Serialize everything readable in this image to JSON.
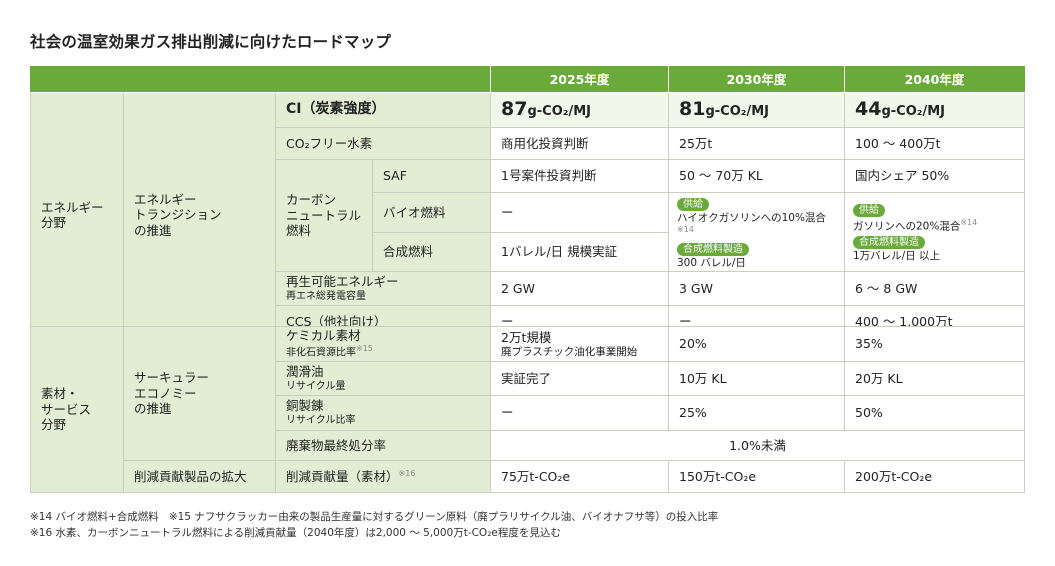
{
  "title": "社会の温室効果ガス排出削減に向けたロードマップ",
  "header": {
    "years": [
      "2025年度",
      "2030年度",
      "2040年度"
    ]
  },
  "sections": {
    "energy": {
      "label1": "エネルギー",
      "label2": "分野",
      "cat1": "エネルギー",
      "cat2": "トランジション",
      "cat3": "の推進"
    },
    "material": {
      "label1": "素材・",
      "label2": "サービス",
      "label3": "分野",
      "cat1": "サーキュラー",
      "cat2": "エコノミー",
      "cat3": "の推進",
      "cat_reduce": "削減貢献製品の拡大"
    }
  },
  "ci": {
    "label": "CI（炭素強度）",
    "unit": "g-CO₂/MJ",
    "v2025": "87",
    "v2030": "81",
    "v2040": "44"
  },
  "co2free": {
    "label": "CO₂フリー水素",
    "v2025": "商用化投資判断",
    "v2030": "25万t",
    "v2040": "100 ～ 400万t"
  },
  "carbon_neutral": {
    "label1": "カーボン",
    "label2": "ニュートラル",
    "label3": "燃料",
    "saf": {
      "label": "SAF",
      "v2025": "1号案件投資判断",
      "v2030": "50 ～ 70万 KL",
      "v2040": "国内シェア 50%"
    },
    "bio": {
      "label": "バイオ燃料",
      "v2025": "ー"
    },
    "synth": {
      "label": "合成燃料",
      "v2025": "1バレル/日 規模実証"
    },
    "merged2030": {
      "badge1": "供給",
      "text1": "ハイオクガソリンへの10%混合",
      "note1": "※14",
      "badge2": "合成燃料製造",
      "text2": "300 バレル/日"
    },
    "merged2040": {
      "badge1": "供給",
      "text1": "ガソリンへの20%混合",
      "note1": "※14",
      "badge2": "合成燃料製造",
      "text2": "1万バレル/日 以上"
    }
  },
  "renewable": {
    "label": "再生可能エネルギー",
    "sub": "再エネ総発電容量",
    "v2025": "2 GW",
    "v2030": "3 GW",
    "v2040": "6 ～ 8 GW"
  },
  "ccs": {
    "label": "CCS（他社向け）",
    "v2025": "ー",
    "v2030": "ー",
    "v2040": "400 ～ 1,000万t"
  },
  "chemical": {
    "label": "ケミカル素材",
    "sub": "非化石資源比率",
    "note": "※15",
    "v2025a": "2万t規模",
    "v2025b": "廃プラスチック油化事業開始",
    "v2030": "20%",
    "v2040": "35%"
  },
  "lubricant": {
    "label": "潤滑油",
    "sub": "リサイクル量",
    "v2025": "実証完了",
    "v2030": "10万 KL",
    "v2040": "20万 KL"
  },
  "copper": {
    "label": "銅製錬",
    "sub": "リサイクル比率",
    "v2025": "ー",
    "v2030": "25%",
    "v2040": "50%"
  },
  "waste": {
    "label": "廃棄物最終処分率",
    "value": "1.0%未満"
  },
  "reduction": {
    "label": "削減貢献量（素材）",
    "note": "※16",
    "v2025": "75万t-CO₂e",
    "v2030": "150万t-CO₂e",
    "v2040": "200万t-CO₂e"
  },
  "footnotes": {
    "n14": "※14 バイオ燃料+合成燃料",
    "n15": "※15 ナフサクラッカー由来の製品生産量に対するグリーン原料（廃プラリサイクル油、バイオナフサ等）の投入比率",
    "n16": "※16 水素、カーボンニュートラル燃料による削減貢献量（2040年度）は2,000 ～ 5,000万t-CO₂e程度を見込む"
  }
}
